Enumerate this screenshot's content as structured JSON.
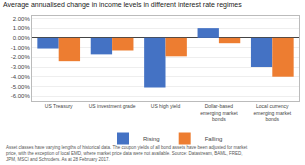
{
  "chart_data": {
    "type": "bar",
    "title": "Average annualised change in income levels in different interest rate regimes",
    "categories": [
      "US Treasury",
      "US investment grade",
      "US high yield",
      "Dollar-based\nemerging market\nbonds",
      "Local currency\nemerging market\nbonds"
    ],
    "series": [
      {
        "name": "Rising",
        "color": "#4472C4",
        "values": [
          -1.1,
          -1.7,
          -5.1,
          1.0,
          -3.0
        ]
      },
      {
        "name": "Falling",
        "color": "#ED7D31",
        "values": [
          -2.4,
          -1.3,
          -1.9,
          -0.55,
          -4.0
        ]
      }
    ],
    "ylim": [
      -6.5,
      2.25
    ],
    "yticks": [
      {
        "value": 2.0,
        "label": "2.00%"
      },
      {
        "value": 1.0,
        "label": "1.00%"
      },
      {
        "value": 0.0,
        "label": "0.00%"
      },
      {
        "value": -1.0,
        "label": "-1.00%"
      },
      {
        "value": -2.0,
        "label": "-2.00%"
      },
      {
        "value": -3.0,
        "label": "-3.00%"
      },
      {
        "value": -4.0,
        "label": "-4.00%"
      },
      {
        "value": -5.0,
        "label": "-5.00%"
      },
      {
        "value": -6.0,
        "label": "-6.00%"
      }
    ],
    "grid": true,
    "legend": "bottom",
    "annotations": [
      "Asset classes have varying lengths of historical data. The coupon yields of all bond assets have been adjusted for market\nprice, with the exception of local EMD, where market price data were not available. Source: Datastream, BAML, FRED,\nJPM, MSCI and Schroders. As at 28 February 2017."
    ]
  }
}
